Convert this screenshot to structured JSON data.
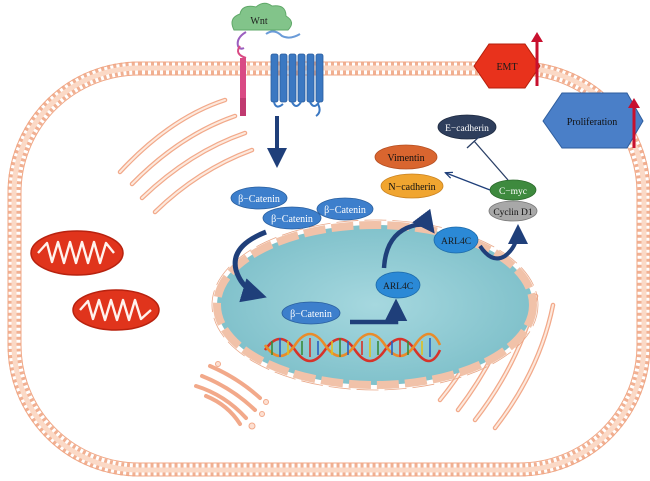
{
  "diagram": {
    "ligand": {
      "label": "Wnt"
    },
    "cytoplasm_beta_catenin": [
      "β−Catenin",
      "β−Catenin",
      "β−Catenin"
    ],
    "nuclear_beta_catenin": "β−Catenin",
    "target_gene": "ARL4C",
    "arl4c_protein": "ARL4C",
    "downstream": {
      "e_cadherin": "E−cadherin",
      "vimentin": "Vimentin",
      "n_cadherin": "N−cadherin",
      "c_myc": "C−myc",
      "cyclin_d1": "Cyclin D1"
    },
    "outcomes": {
      "emt": "EMT",
      "proliferation": "Proliferation"
    },
    "colors": {
      "membrane": "#f3b79c",
      "nucleus": "#8ecbd4",
      "nuclear_envelope": "#f1c2a9",
      "receptor": "#3b78c2",
      "beta_catenin": "#3d7fcc",
      "arrow": "#1f3f7a",
      "mitochondria": "#e0341c",
      "emt": "#e8321c",
      "proliferation": "#4a7fc8",
      "up_arrow": "#c8102e",
      "wnt": "#82c48a"
    }
  }
}
